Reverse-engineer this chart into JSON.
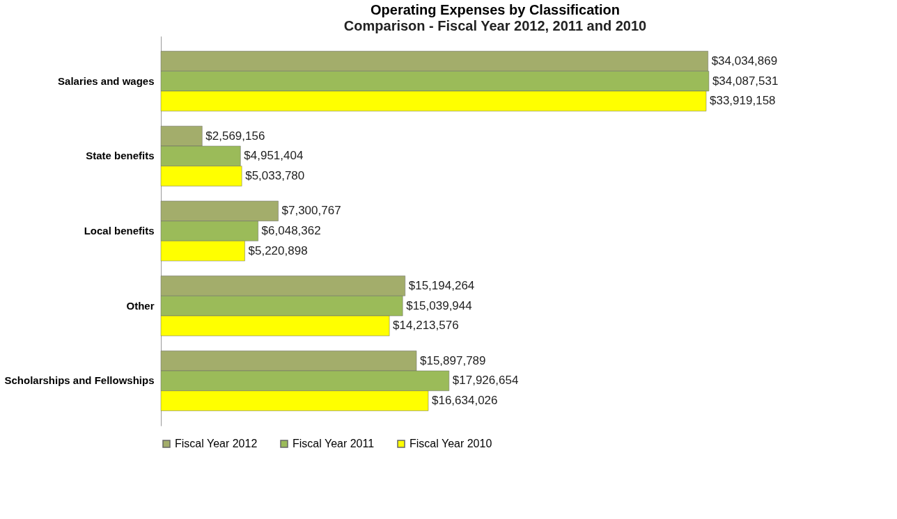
{
  "chart_data": {
    "type": "bar",
    "orientation": "horizontal",
    "title": "Operating Expenses by Classification",
    "subtitle": "Comparison - Fiscal Year 2012, 2011 and 2010",
    "categories": [
      "Salaries and wages",
      "State benefits",
      "Local benefits",
      "Other",
      "Scholarships and Fellowships"
    ],
    "series": [
      {
        "name": "Fiscal Year 2012",
        "color": "#a3ad6b",
        "values": [
          34034869,
          2569156,
          7300767,
          15194264,
          15897789
        ],
        "value_labels": [
          "$34,034,869",
          "$2,569,156",
          "$7,300,767",
          "$15,194,264",
          "$15,897,789"
        ]
      },
      {
        "name": "Fiscal Year 2011",
        "color": "#9bbb59",
        "values": [
          34087531,
          4951404,
          6048362,
          15039944,
          17926654
        ],
        "value_labels": [
          "$34,087,531",
          "$4,951,404",
          "$6,048,362",
          "$15,039,944",
          "$17,926,654"
        ]
      },
      {
        "name": "Fiscal Year 2010",
        "color": "#ffff00",
        "values": [
          33919158,
          5033780,
          5220898,
          14213576,
          16634026
        ],
        "value_labels": [
          "$33,919,158",
          "$5,033,780",
          "$5,220,898",
          "$14,213,576",
          "$16,634,026"
        ]
      }
    ],
    "legend": "bottom",
    "grid": false
  }
}
